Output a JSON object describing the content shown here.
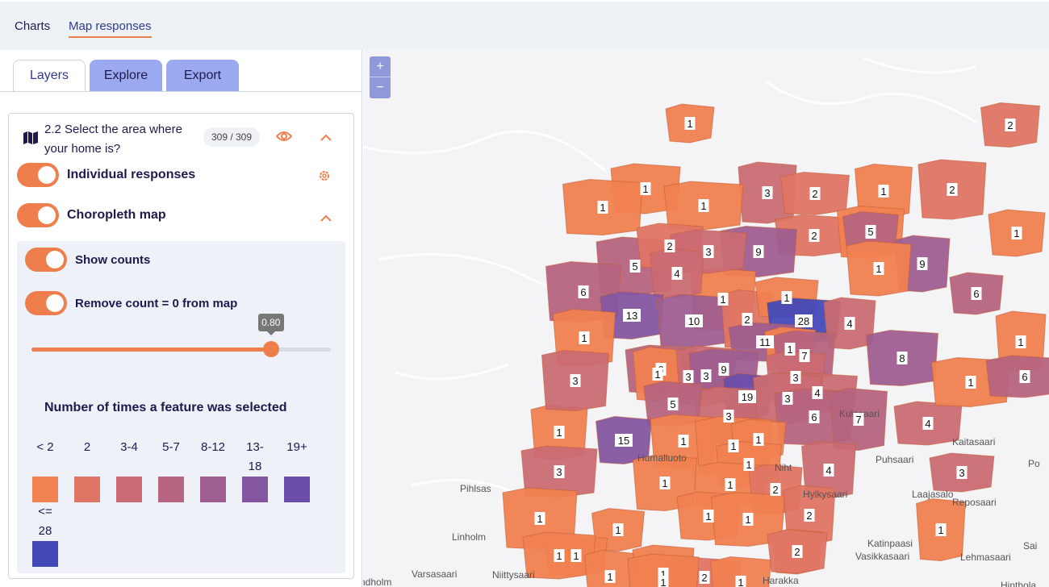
{
  "top_tabs": [
    {
      "label": "Charts"
    },
    {
      "label": "Map responses"
    }
  ],
  "panel_tabs": [
    {
      "label": "Layers"
    },
    {
      "label": "Explore"
    },
    {
      "label": "Export"
    }
  ],
  "question": {
    "title": "2.2 Select the area where your home is?",
    "count": "309 / 309"
  },
  "layers": {
    "individual_label": "Individual responses",
    "choropleth_label": "Choropleth map",
    "show_counts_label": "Show counts",
    "remove_zero_label": "Remove count = 0 from map",
    "opacity_value": "0.80",
    "opacity_fraction": 0.8
  },
  "legend": {
    "title": "Number of times a feature was selected",
    "bins": [
      {
        "label": "< 2",
        "color": "#f08150"
      },
      {
        "label": "2",
        "color": "#df7565"
      },
      {
        "label": "3-4",
        "color": "#ca6b73"
      },
      {
        "label": "5-7",
        "color": "#b66480"
      },
      {
        "label": "8-12",
        "color": "#9e5e90"
      },
      {
        "label": "13-18",
        "color": "#8456a1"
      },
      {
        "label": "19+",
        "color": "#6b4eaa"
      },
      {
        "label": "<= 28",
        "color": "#4349b8"
      }
    ]
  },
  "map": {
    "zoom_in": "+",
    "zoom_out": "−",
    "place_names": [
      "Linholm",
      "Niittysaari",
      "Varsasaari",
      "ndholm",
      "Kulosaari",
      "Kaitasaari",
      "Puhsaari",
      "Laajasalo",
      "Reposaari",
      "Katinpaasi",
      "Vasikkasaari",
      "Lehmasaari",
      "Hylkysaari",
      "Humalluoto",
      "Pihlsas",
      "Niht",
      "Po",
      "Sai",
      "Harakka",
      "Hinthola"
    ],
    "counts": [
      "1",
      "2",
      "1",
      "1",
      "3",
      "2",
      "1",
      "1",
      "2",
      "2",
      "1",
      "1",
      "5",
      "5",
      "2",
      "9",
      "9",
      "1",
      "3",
      "4",
      "1",
      "6",
      "6",
      "13",
      "10",
      "2",
      "1",
      "28",
      "4",
      "1",
      "11",
      "1",
      "7",
      "8",
      "1",
      "3",
      "6",
      "1",
      "3",
      "9",
      "19",
      "3",
      "3",
      "4",
      "5",
      "3",
      "6",
      "7",
      "4",
      "1",
      "1",
      "3",
      "6",
      "15",
      "1",
      "1",
      "1",
      "1",
      "3",
      "4",
      "3",
      "1",
      "2",
      "1",
      "1",
      "1",
      "1",
      "1",
      "2",
      "1",
      "1",
      "1",
      "1",
      "2",
      "1",
      "1",
      "1",
      "1",
      "2"
    ]
  }
}
